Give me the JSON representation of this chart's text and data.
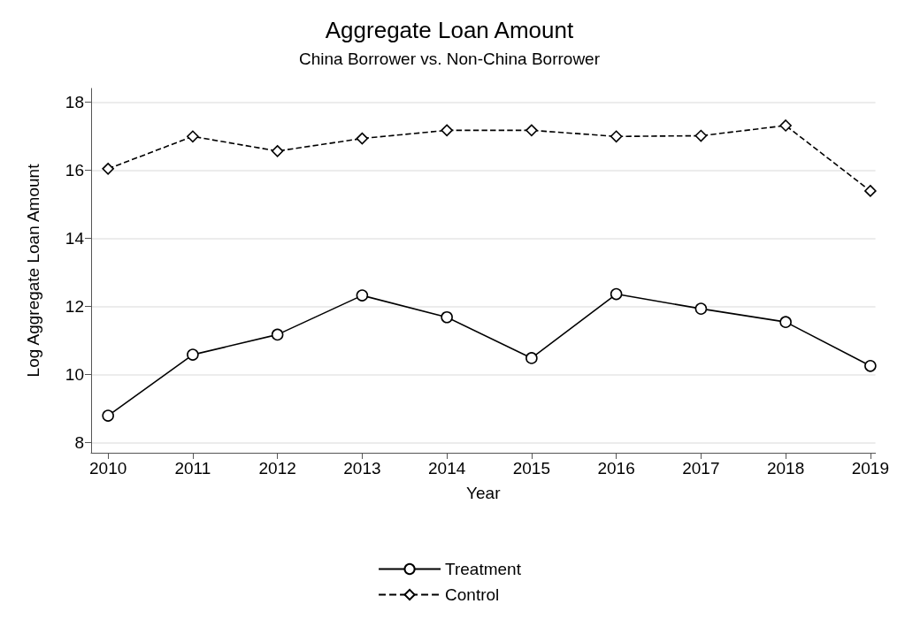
{
  "chart_data": {
    "type": "line",
    "title": "Aggregate Loan Amount",
    "subtitle": "China Borrower vs. Non-China Borrower",
    "xlabel": "Year",
    "ylabel": "Log Aggregate Loan Amount",
    "x": [
      2010,
      2011,
      2012,
      2013,
      2014,
      2015,
      2016,
      2017,
      2018,
      2019
    ],
    "xlim": [
      2009.8,
      2019.06
    ],
    "xticks": [
      2010,
      2011,
      2012,
      2013,
      2014,
      2015,
      2016,
      2017,
      2018,
      2019
    ],
    "ylim": [
      7.7,
      18.4
    ],
    "yticks": [
      8,
      10,
      12,
      14,
      16,
      18
    ],
    "grid": "y",
    "legend": "bottom",
    "series": [
      {
        "name": "Treatment",
        "color": "#000000",
        "marker": "circle",
        "line_style": "solid",
        "values": [
          8.79,
          10.58,
          11.17,
          12.32,
          11.68,
          10.48,
          12.36,
          11.93,
          11.54,
          10.25
        ]
      },
      {
        "name": "Control",
        "color": "#000000",
        "marker": "diamond",
        "line_style": "dashed",
        "values": [
          16.04,
          16.99,
          16.56,
          16.93,
          17.17,
          17.17,
          16.99,
          17.01,
          17.31,
          15.39
        ]
      }
    ]
  }
}
